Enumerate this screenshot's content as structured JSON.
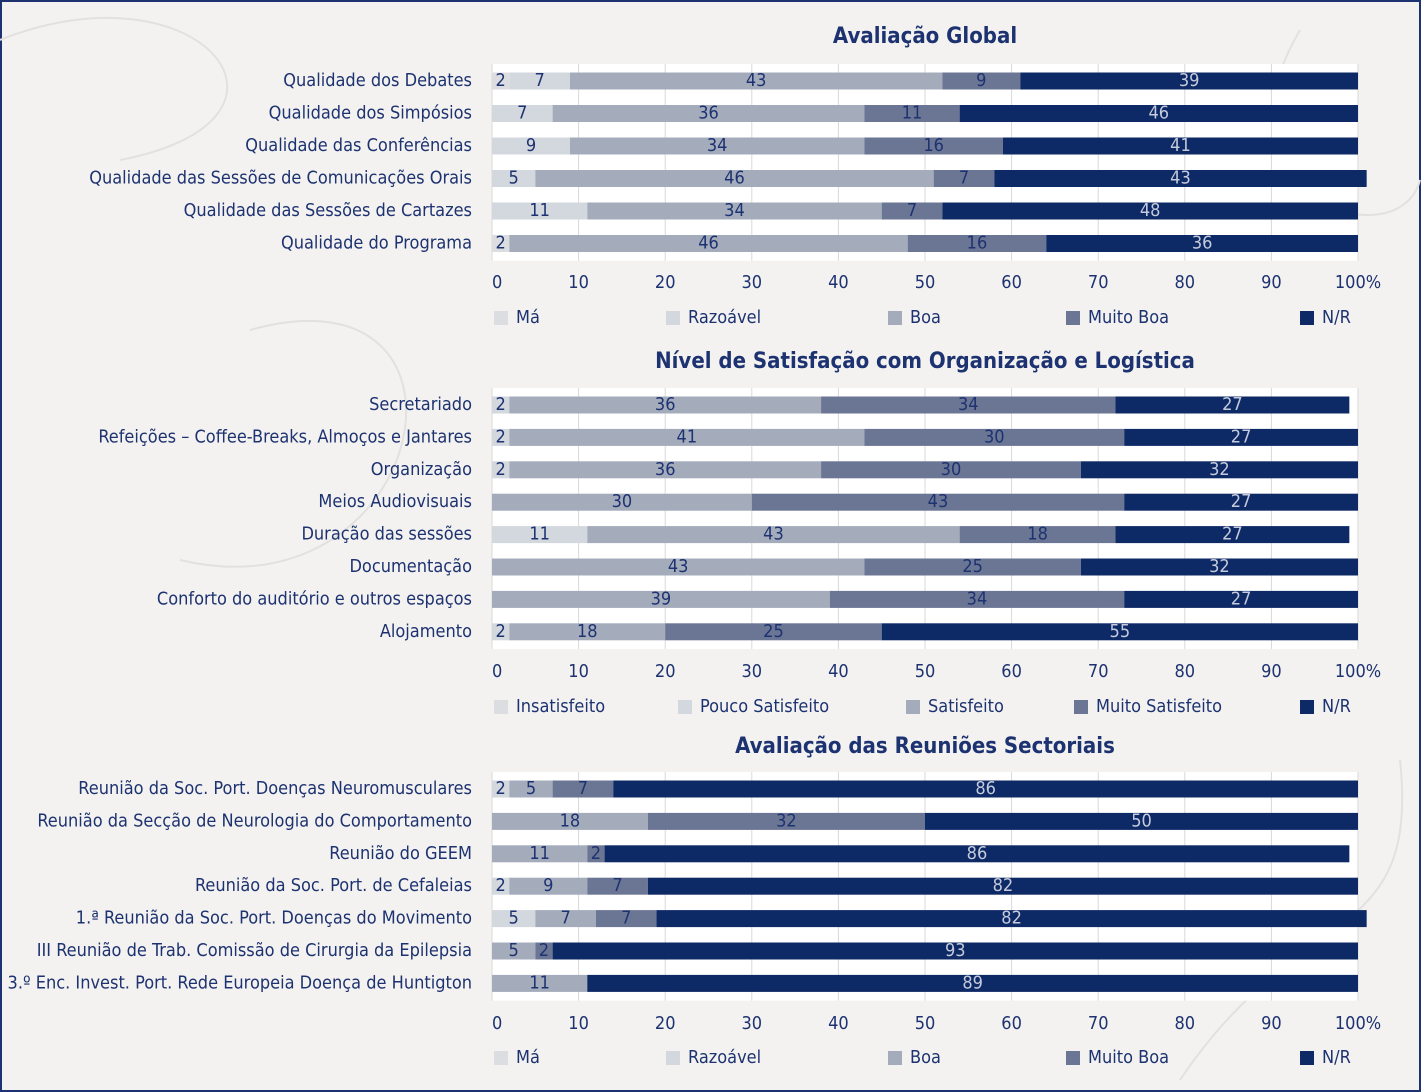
{
  "chart_data": [
    {
      "type": "bar",
      "orientation": "horizontal",
      "stacked": true,
      "title": "Avaliação Global",
      "categories": [
        "Qualidade dos Debates",
        "Qualidade dos Simpósios",
        "Qualidade das Conferências",
        "Qualidade das Sessões de Comunicações Orais",
        "Qualidade das Sessões de Cartazes",
        "Qualidade do Programa"
      ],
      "series": [
        {
          "name": "Má",
          "color": "#dcdde0",
          "values": [
            2,
            null,
            null,
            null,
            null,
            2
          ]
        },
        {
          "name": "Razoável",
          "color": "#d3d7de",
          "values": [
            7,
            7,
            9,
            5,
            11,
            null
          ]
        },
        {
          "name": "Boa",
          "color": "#a4acbc",
          "values": [
            43,
            36,
            34,
            46,
            34,
            46
          ]
        },
        {
          "name": "Muito Boa",
          "color": "#6b7594",
          "values": [
            9,
            11,
            16,
            7,
            7,
            16
          ]
        },
        {
          "name": "N/R",
          "color": "#0e2a66",
          "values": [
            39,
            46,
            41,
            43,
            48,
            36
          ]
        }
      ],
      "xlim": [
        0,
        100
      ],
      "xticks": [
        0,
        10,
        20,
        30,
        40,
        50,
        60,
        70,
        80,
        90,
        {
          "value": 100,
          "label": "100%"
        }
      ],
      "grid": true,
      "legend": "bottom"
    },
    {
      "type": "bar",
      "orientation": "horizontal",
      "stacked": true,
      "title": "Nível de Satisfação com Organização e Logística",
      "categories": [
        "Secretariado",
        "Refeições – Coffee-Breaks, Almoços e Jantares",
        "Organização",
        "Meios Audiovisuais",
        "Duração das sessões",
        "Documentação",
        "Conforto do auditório e outros espaços",
        "Alojamento"
      ],
      "series": [
        {
          "name": "Insatisfeito",
          "color": "#dcdde0",
          "values": [
            null,
            null,
            null,
            null,
            null,
            null,
            null,
            null
          ]
        },
        {
          "name": "Pouco Satisfeito",
          "color": "#d3d7de",
          "values": [
            2,
            2,
            2,
            null,
            11,
            null,
            null,
            2
          ]
        },
        {
          "name": "Satisfeito",
          "color": "#a4acbc",
          "values": [
            36,
            41,
            36,
            30,
            43,
            43,
            39,
            18
          ]
        },
        {
          "name": "Muito Satisfeito",
          "color": "#6b7594",
          "values": [
            34,
            30,
            30,
            43,
            18,
            25,
            34,
            25
          ]
        },
        {
          "name": "N/R",
          "color": "#0e2a66",
          "values": [
            27,
            27,
            32,
            27,
            27,
            32,
            27,
            55
          ]
        }
      ],
      "xlim": [
        0,
        100
      ],
      "xticks": [
        0,
        10,
        20,
        30,
        40,
        50,
        60,
        70,
        80,
        90,
        {
          "value": 100,
          "label": "100%"
        }
      ],
      "grid": true,
      "legend": "bottom"
    },
    {
      "type": "bar",
      "orientation": "horizontal",
      "stacked": true,
      "title": "Avaliação das Reuniões Sectoriais",
      "categories": [
        "Reunião da Soc. Port. Doenças Neuromusculares",
        "Reunião da Secção de Neurologia do Comportamento",
        "Reunião do GEEM",
        "Reunião da Soc. Port. de Cefaleias",
        "1.ª Reunião da Soc. Port. Doenças do Movimento",
        "III Reunião de Trab. Comissão de Cirurgia da Epilepsia",
        "3.º Enc. Invest. Port. Rede Europeia Doença de Huntigton"
      ],
      "series": [
        {
          "name": "Má",
          "color": "#dcdde0",
          "values": [
            null,
            null,
            null,
            null,
            null,
            null,
            null
          ]
        },
        {
          "name": "Razoável",
          "color": "#d3d7de",
          "values": [
            2,
            null,
            null,
            2,
            5,
            null,
            null
          ]
        },
        {
          "name": "Boa",
          "color": "#a4acbc",
          "values": [
            5,
            18,
            11,
            9,
            7,
            5,
            11
          ]
        },
        {
          "name": "Muito Boa",
          "color": "#6b7594",
          "values": [
            7,
            32,
            2,
            7,
            7,
            2,
            null
          ]
        },
        {
          "name": "N/R",
          "color": "#0e2a66",
          "values": [
            86,
            50,
            86,
            82,
            82,
            93,
            89
          ]
        }
      ],
      "xlim": [
        0,
        100
      ],
      "xticks": [
        0,
        10,
        20,
        30,
        40,
        50,
        60,
        70,
        80,
        90,
        {
          "value": 100,
          "label": "100%"
        }
      ],
      "grid": true,
      "legend": "bottom"
    }
  ]
}
